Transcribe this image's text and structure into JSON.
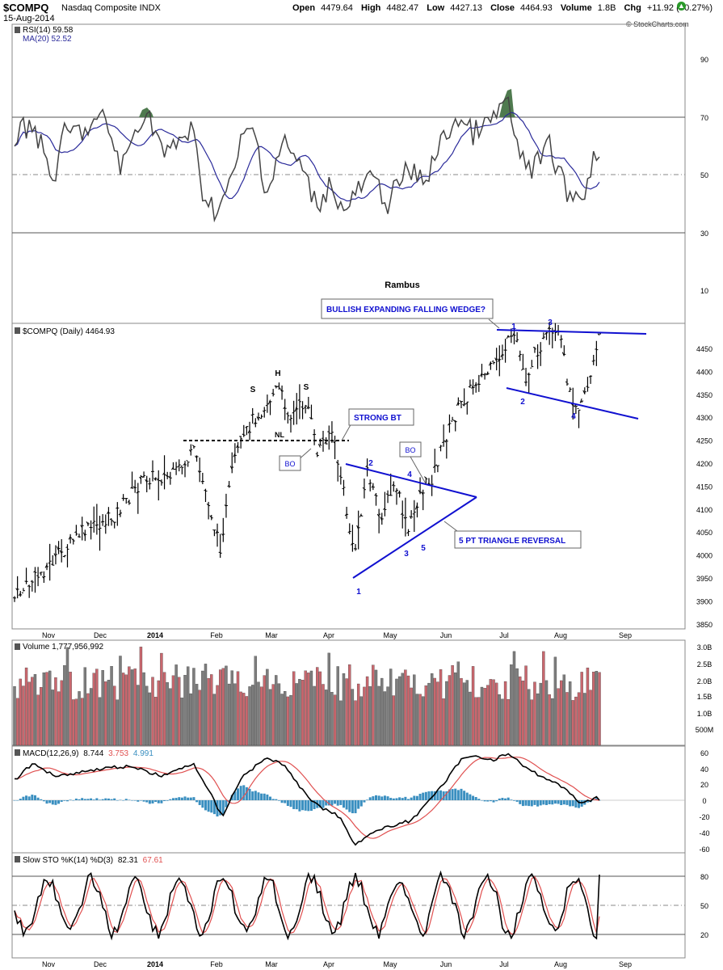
{
  "header": {
    "ticker": "$COMPQ",
    "name": "Nasdaq Composite INDX",
    "date": "15-Aug-2014",
    "open_label": "Open",
    "open": "4479.64",
    "high_label": "High",
    "high": "4482.47",
    "low_label": "Low",
    "low": "4427.13",
    "close_label": "Close",
    "close": "4464.93",
    "volume_label": "Volume",
    "volume": "1.8B",
    "chg_label": "Chg",
    "chg": "+11.92 (+0.27%)",
    "copyright": "© StockCharts.com"
  },
  "colors": {
    "blue_annot": "#1010d0",
    "price": "#000000",
    "rsi_ma": "#2a2a9a",
    "macd_signal": "#e05050",
    "hist": "#3a8fc0",
    "vol_up": "#c9676e",
    "vol_down": "#7d7d7d",
    "sto_d": "#e05050",
    "rsi_fill": "#4f7a4f"
  },
  "panels": {
    "rsi": {
      "legend1": "RSI(14) 59.58",
      "legend2": "MA(20) 52.52",
      "ticks": [
        "90",
        "70",
        "50",
        "30",
        "10"
      ]
    },
    "price": {
      "legend": "$COMPQ (Daily) 4464.93",
      "watermark": "Rambus",
      "ticks": [
        "4450",
        "4400",
        "4350",
        "4300",
        "4250",
        "4200",
        "4150",
        "4100",
        "4050",
        "4000",
        "3950",
        "3900",
        "3850"
      ]
    },
    "volume": {
      "legend": "Volume 1,777,956,992",
      "ticks": [
        "3.0B",
        "2.5B",
        "2.0B",
        "1.5B",
        "1.0B",
        "500M"
      ]
    },
    "macd": {
      "legend_prefix": "MACD(12,26,9)",
      "legend_macd": "8.744",
      "legend_signal": "3.753",
      "legend_hist": "4.991",
      "ticks": [
        "60",
        "40",
        "20",
        "0",
        "-20",
        "-40",
        "-60"
      ]
    },
    "sto": {
      "legend_prefix": "Slow STO %K(14) %D(3)",
      "legend_k": "82.31",
      "legend_d": "67.61",
      "ticks": [
        "80",
        "50",
        "20"
      ]
    }
  },
  "x_axis": [
    "Nov",
    "Dec",
    "2014",
    "Feb",
    "Mar",
    "Apr",
    "May",
    "Jun",
    "Jul",
    "Aug",
    "Sep"
  ],
  "annotations": {
    "wedge_box": "BULLISH EXPANDING FALLING WEDGE?",
    "strong_bt": "STRONG BT",
    "bo1": "BO",
    "bo2": "BO",
    "triangle_box": "5 PT TRIANGLE REVERSAL",
    "hs_s1": "S",
    "hs_h": "H",
    "hs_s2": "S",
    "hs_nl": "NL",
    "tri_pts": [
      "1",
      "2",
      "3",
      "4",
      "5"
    ],
    "wedge_pts": [
      "1",
      "2",
      "3",
      "4"
    ]
  },
  "chart_data": [
    {
      "type": "line",
      "title": "RSI(14)",
      "series": [
        {
          "name": "RSI(14)",
          "last": 59.58
        },
        {
          "name": "MA(20)",
          "last": 52.52
        }
      ],
      "ylim": [
        0,
        100
      ],
      "reference_lines": [
        70,
        50,
        30
      ]
    },
    {
      "type": "bar",
      "title": "$COMPQ (Daily)",
      "note": "OHLC price bars, Nov 2013 - Aug 2014",
      "ylim": [
        3850,
        4490
      ],
      "last_close": 4464.93,
      "key_points": [
        {
          "date": "Nov 2013",
          "price": 3920
        },
        {
          "date": "Jan 2014",
          "price": 4170
        },
        {
          "date": "Feb 2014",
          "price": 3990
        },
        {
          "date": "Mar 2014",
          "price": 4360
        },
        {
          "date": "Apr 2014",
          "price": 4000
        },
        {
          "date": "May 2014",
          "price": 4100
        },
        {
          "date": "Jun 2014",
          "price": 4350
        },
        {
          "date": "Jul 2014",
          "price": 4460
        },
        {
          "date": "Aug 2014",
          "price": 4340
        },
        {
          "date": "15-Aug-2014",
          "price": 4464.93
        }
      ]
    },
    {
      "type": "bar",
      "title": "Volume",
      "last": 1777956992,
      "ylim": [
        0,
        3000000000
      ]
    },
    {
      "type": "line",
      "title": "MACD(12,26,9)",
      "series": [
        {
          "name": "MACD",
          "last": 8.744
        },
        {
          "name": "Signal",
          "last": 3.753
        },
        {
          "name": "Histogram",
          "last": 4.991
        }
      ],
      "ylim": [
        -60,
        60
      ]
    },
    {
      "type": "line",
      "title": "Slow STO %K(14) %D(3)",
      "series": [
        {
          "name": "%K",
          "last": 82.31
        },
        {
          "name": "%D",
          "last": 67.61
        }
      ],
      "ylim": [
        0,
        100
      ],
      "reference_lines": [
        80,
        50,
        20
      ]
    }
  ]
}
